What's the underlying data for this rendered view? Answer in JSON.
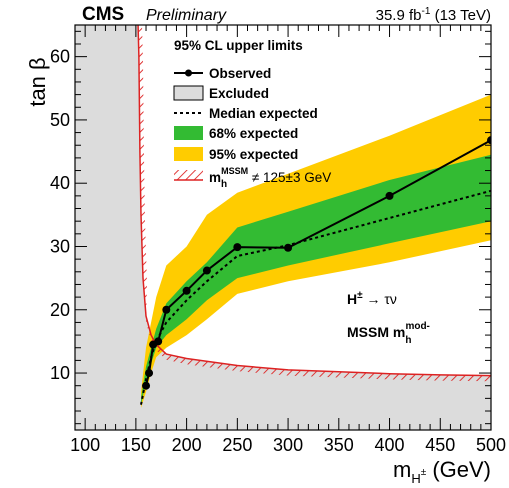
{
  "header": {
    "experiment": "CMS",
    "status": "Preliminary",
    "lumi": "35.9 fb",
    "lumi_exp": "-1",
    "energy": " (13 TeV)"
  },
  "axes": {
    "ylabel": "tan β",
    "xlabel_main": "m",
    "xlabel_sub": "H",
    "xlabel_sup": "±",
    "xlabel_unit": " (GeV)"
  },
  "legend": {
    "title": "95% CL upper limits",
    "observed": "Observed",
    "excluded": "Excluded",
    "median": "Median expected",
    "band68": "68% expected",
    "band95": "95% expected",
    "mh_main": "m",
    "mh_sub": "h",
    "mh_sup": "MSSM",
    "mh_rest": " ≠ 125±3 GeV"
  },
  "annotations": {
    "process_main": "H",
    "process_sup": "±",
    "process_rest": " → τν",
    "scenario_main": "MSSM  m",
    "scenario_sub": "h",
    "scenario_sup": "mod-"
  },
  "colors": {
    "excluded": "#dcdcdc",
    "band68": "#33bb33",
    "band95": "#ffcc00",
    "hatch": "#dd2222",
    "line": "#000000"
  },
  "chart_data": {
    "type": "line",
    "xlim": [
      90,
      500
    ],
    "ylim": [
      1,
      65
    ],
    "x_ticks": [
      100,
      150,
      200,
      250,
      300,
      350,
      400,
      450,
      500
    ],
    "y_ticks": [
      10,
      20,
      30,
      40,
      50,
      60
    ],
    "observed": {
      "x": [
        160,
        163,
        167,
        172,
        180,
        200,
        220,
        250,
        300,
        400,
        500
      ],
      "y": [
        8,
        10,
        14.5,
        15,
        20,
        23,
        26.2,
        29.9,
        29.8,
        38,
        46.8
      ]
    },
    "expected_median": {
      "x": [
        155,
        160,
        165,
        170,
        180,
        200,
        220,
        250,
        300,
        400,
        500
      ],
      "y": [
        5,
        9,
        12.5,
        15,
        18,
        21.5,
        24.5,
        28.5,
        30.2,
        34.5,
        38.8
      ]
    },
    "band68": {
      "x": [
        155,
        160,
        165,
        170,
        180,
        200,
        220,
        250,
        300,
        400,
        500
      ],
      "low": [
        5,
        8.5,
        11.5,
        14,
        16,
        18.5,
        21.5,
        25,
        27,
        30.5,
        34
      ],
      "high": [
        6,
        11,
        14,
        17,
        21,
        24.5,
        27.5,
        33,
        35.5,
        40.5,
        44.5
      ]
    },
    "band95": {
      "x": [
        155,
        160,
        165,
        170,
        180,
        200,
        220,
        250,
        300,
        400,
        500
      ],
      "low": [
        4.5,
        7,
        10,
        12.5,
        14,
        16,
        18.5,
        22.5,
        24.5,
        27.5,
        31
      ],
      "high": [
        7,
        14,
        18,
        22,
        27,
        30,
        35,
        38.5,
        41.5,
        47.5,
        54
      ]
    },
    "excluded_boundary": {
      "x": [
        152,
        153,
        154,
        155,
        157,
        160,
        165,
        170,
        180,
        200,
        250,
        300,
        350,
        400,
        450,
        500
      ],
      "y": [
        66,
        60,
        45,
        35,
        25,
        19,
        16,
        14.5,
        13,
        12.3,
        11.2,
        10.5,
        10.2,
        9.9,
        9.7,
        9.6
      ]
    }
  }
}
